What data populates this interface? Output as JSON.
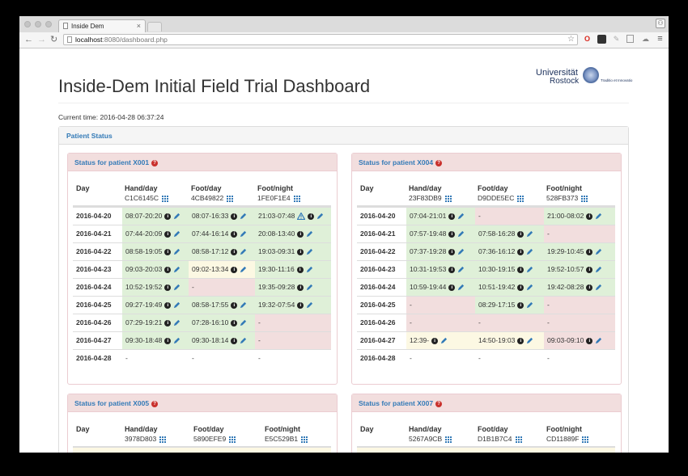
{
  "browser": {
    "tab_title": "Inside Dem",
    "tab_close": "×",
    "url_host": "localhost",
    "url_path": ":8080/dashboard.php",
    "back": "←",
    "forward": "→",
    "reload": "↻",
    "profile": "⚇",
    "menu": "≡"
  },
  "page": {
    "title": "Inside-Dem Initial Field Trial Dashboard",
    "current_time_label": "Current time:",
    "current_time": "2016-04-28 06:37:24",
    "logo_line1": "Universität",
    "logo_line2": "Rostock",
    "logo_tagline": "Traditio et Innovatio",
    "outer_panel_title": "Patient Status"
  },
  "colors": {
    "ok": "#dff0d8",
    "bad": "#f2dede",
    "warn": "#fcf8e3",
    "link": "#337ab7"
  },
  "columns": {
    "day": "Day",
    "hand": "Hand/day",
    "foot": "Foot/day",
    "night": "Foot/night"
  },
  "patients": [
    {
      "title": "Status for patient X001",
      "hand_id": "C1C6145C",
      "foot_id": "4CB49822",
      "night_id": "1FE0F1E4",
      "rows": [
        {
          "day": "2016-04-20",
          "hand": "08:07-20:20",
          "hs": "ok",
          "foot": "08:07-16:33",
          "fs": "ok",
          "night": "21:03-07:48",
          "ns": "ok",
          "nwarn": true
        },
        {
          "day": "2016-04-21",
          "hand": "07:44-20:09",
          "hs": "ok",
          "foot": "07:44-16:14",
          "fs": "ok",
          "night": "20:08-13:40",
          "ns": "ok"
        },
        {
          "day": "2016-04-22",
          "hand": "08:58-19:05",
          "hs": "ok",
          "foot": "08:58-17:12",
          "fs": "ok",
          "night": "19:03-09:31",
          "ns": "ok"
        },
        {
          "day": "2016-04-23",
          "hand": "09:03-20:03",
          "hs": "ok",
          "foot": "09:02-13:34",
          "fs": "warn",
          "night": "19:30-11:16",
          "ns": "ok"
        },
        {
          "day": "2016-04-24",
          "hand": "10:52-19:52",
          "hs": "ok",
          "foot": "-",
          "fs": "bad",
          "night": "19:35-09:28",
          "ns": "ok"
        },
        {
          "day": "2016-04-25",
          "hand": "09:27-19:49",
          "hs": "ok",
          "foot": "08:58-17:55",
          "fs": "ok",
          "night": "19:32-07:54",
          "ns": "ok"
        },
        {
          "day": "2016-04-26",
          "hand": "07:29-19:21",
          "hs": "ok",
          "foot": "07:28-16:10",
          "fs": "ok",
          "night": "-",
          "ns": "bad"
        },
        {
          "day": "2016-04-27",
          "hand": "09:30-18:48",
          "hs": "ok",
          "foot": "09:30-18:14",
          "fs": "ok",
          "night": "-",
          "ns": "bad"
        },
        {
          "day": "2016-04-28",
          "hand": "-",
          "hs": "",
          "foot": "-",
          "fs": "",
          "night": "-",
          "ns": ""
        }
      ]
    },
    {
      "title": "Status for patient X004",
      "hand_id": "23F83DB9",
      "foot_id": "D9DDE5EC",
      "night_id": "528FB373",
      "rows": [
        {
          "day": "2016-04-20",
          "hand": "07:04-21:01",
          "hs": "ok",
          "foot": "-",
          "fs": "bad",
          "night": "21:00-08:02",
          "ns": "ok"
        },
        {
          "day": "2016-04-21",
          "hand": "07:57-19:48",
          "hs": "ok",
          "foot": "07:58-16:28",
          "fs": "ok",
          "night": "-",
          "ns": "bad"
        },
        {
          "day": "2016-04-22",
          "hand": "07:37-19:28",
          "hs": "ok",
          "foot": "07:36-16:12",
          "fs": "ok",
          "night": "19:29-10:45",
          "ns": "ok"
        },
        {
          "day": "2016-04-23",
          "hand": "10:31-19:53",
          "hs": "ok",
          "foot": "10:30-19:15",
          "fs": "ok",
          "night": "19:52-10:57",
          "ns": "ok"
        },
        {
          "day": "2016-04-24",
          "hand": "10:59-19:44",
          "hs": "ok",
          "foot": "10:51-19:42",
          "fs": "ok",
          "night": "19:42-08:28",
          "ns": "ok"
        },
        {
          "day": "2016-04-25",
          "hand": "-",
          "hs": "bad",
          "foot": "08:29-17:15",
          "fs": "ok",
          "night": "-",
          "ns": "bad"
        },
        {
          "day": "2016-04-26",
          "hand": "-",
          "hs": "bad",
          "foot": "-",
          "fs": "bad",
          "night": "-",
          "ns": "bad"
        },
        {
          "day": "2016-04-27",
          "hand": "12:39-",
          "hs": "warn",
          "foot": "14:50-19:03",
          "fs": "warn",
          "night": "09:03-09:10",
          "ns": "bad"
        },
        {
          "day": "2016-04-28",
          "hand": "-",
          "hs": "",
          "foot": "-",
          "fs": "",
          "night": "-",
          "ns": ""
        }
      ]
    },
    {
      "title": "Status for patient X005",
      "hand_id": "3978D803",
      "foot_id": "5890EFE9",
      "night_id": "E5C529B1",
      "rows": []
    },
    {
      "title": "Status for patient X007",
      "hand_id": "5267A9CB",
      "foot_id": "D1B1B7C4",
      "night_id": "CD11889F",
      "rows": []
    }
  ]
}
